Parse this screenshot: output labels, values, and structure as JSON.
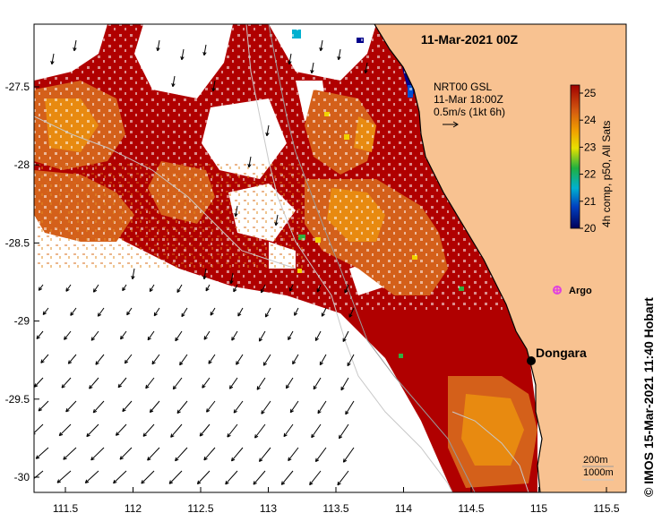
{
  "map": {
    "title": "11-Mar-2021 00Z",
    "credit": "© IMOS 15-Mar-2021 11:40 Hobart",
    "current_info": {
      "line1": "NRT00 GSL",
      "line2": "11-Mar 18:00Z",
      "line3": "0.5m/s (1kt 6h)"
    },
    "colorbar": {
      "label": "4h comp, p50, All Sats",
      "min": 20,
      "max": 25,
      "ticks": [
        "25",
        "24",
        "23",
        "22",
        "21",
        "20"
      ]
    },
    "contours": {
      "label_200": "200m",
      "label_1000": "1000m"
    },
    "places": [
      {
        "name": "Dongara",
        "lon": 114.93,
        "lat": -29.25
      },
      {
        "name": "Argo",
        "lon": 115.12,
        "lat": -28.78
      }
    ],
    "x_ticks": [
      "111.5",
      "112",
      "112.5",
      "113",
      "113.5",
      "114",
      "114.5",
      "115",
      "115.5"
    ],
    "y_ticks": [
      "-27.5",
      "-28",
      "-28.5",
      "-29",
      "-29.5",
      "-30"
    ],
    "colors": {
      "land": "#f8c291",
      "sst_hot": "#b00000",
      "sst_warm": "#d4601a",
      "sst_mid": "#e88a10",
      "sst_cool": "#f2d200",
      "argo": "#e040e0"
    }
  }
}
